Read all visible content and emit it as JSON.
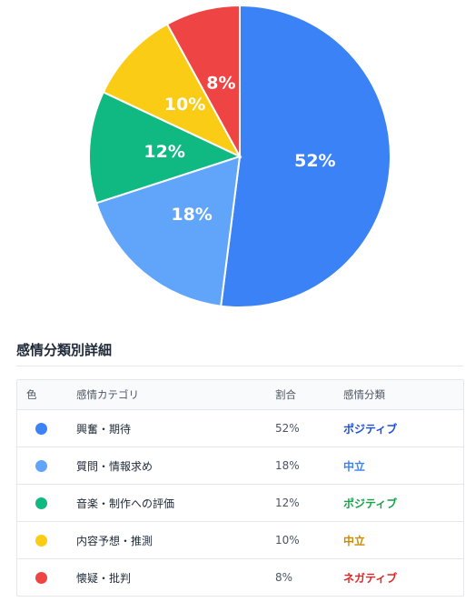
{
  "chart_data": {
    "type": "pie",
    "slices": [
      {
        "label": "52%",
        "value": 52,
        "color": "#3b82f6"
      },
      {
        "label": "18%",
        "value": 18,
        "color": "#60a5fa"
      },
      {
        "label": "12%",
        "value": 12,
        "color": "#10b981"
      },
      {
        "label": "10%",
        "value": 10,
        "color": "#facc15"
      },
      {
        "label": "8%",
        "value": 8,
        "color": "#ef4444"
      }
    ]
  },
  "section": {
    "title": "感情分類別詳細"
  },
  "table": {
    "headers": {
      "color": "色",
      "category": "感情カテゴリ",
      "ratio": "割合",
      "classification": "感情分類"
    },
    "rows": [
      {
        "color": "#3b82f6",
        "category": "興奮・期待",
        "ratio": "52%",
        "classification": "ポジティブ",
        "class_color": "#1d4ed8"
      },
      {
        "color": "#60a5fa",
        "category": "質問・情報求め",
        "ratio": "18%",
        "classification": "中立",
        "class_color": "#3b82f6"
      },
      {
        "color": "#10b981",
        "category": "音楽・制作への評価",
        "ratio": "12%",
        "classification": "ポジティブ",
        "class_color": "#16a34a"
      },
      {
        "color": "#facc15",
        "category": "内容予想・推測",
        "ratio": "10%",
        "classification": "中立",
        "class_color": "#ca8a04"
      },
      {
        "color": "#ef4444",
        "category": "懐疑・批判",
        "ratio": "8%",
        "classification": "ネガティブ",
        "class_color": "#dc2626"
      }
    ]
  }
}
